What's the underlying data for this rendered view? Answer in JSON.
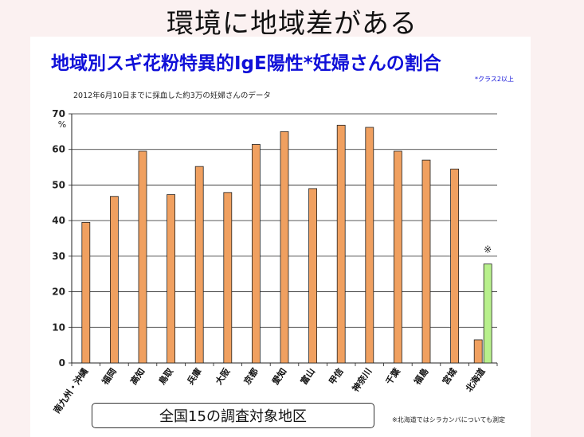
{
  "slide": {
    "title": "環境に地域差がある"
  },
  "chart_data": {
    "type": "bar",
    "title": "地域別スギ花粉特異的IgE陽性*妊婦さんの割合",
    "title_note": "*クラス2以上",
    "subtitle": "2012年6月10日までに採血した約3万の妊婦さんのデータ",
    "ylabel": "%",
    "ylim": [
      0,
      70
    ],
    "yticks": [
      0,
      10,
      20,
      30,
      40,
      50,
      60,
      70
    ],
    "grid": true,
    "categories": [
      "南九州・沖縄",
      "福岡",
      "高知",
      "鳥取",
      "兵庫",
      "大阪",
      "京都",
      "愛知",
      "富山",
      "甲信",
      "神奈川",
      "千葉",
      "福島",
      "宮城",
      "北海道"
    ],
    "series": [
      {
        "values": [
          39.5,
          46.8,
          59.5,
          47.3,
          55.2,
          47.9,
          61.4,
          65.0,
          49.0,
          66.8,
          66.2,
          59.5,
          57.0,
          54.5,
          6.5
        ],
        "color": "#f0a060"
      },
      {
        "values": [
          null,
          null,
          null,
          null,
          null,
          null,
          null,
          null,
          null,
          null,
          null,
          null,
          null,
          null,
          27.8
        ],
        "color": "#b8f08c"
      }
    ],
    "annotations": [
      {
        "category": "北海道",
        "text": "※"
      }
    ],
    "xaxis_title": "全国15の調査対象地区",
    "footnote": "※北海道ではシラカンバについても測定"
  }
}
